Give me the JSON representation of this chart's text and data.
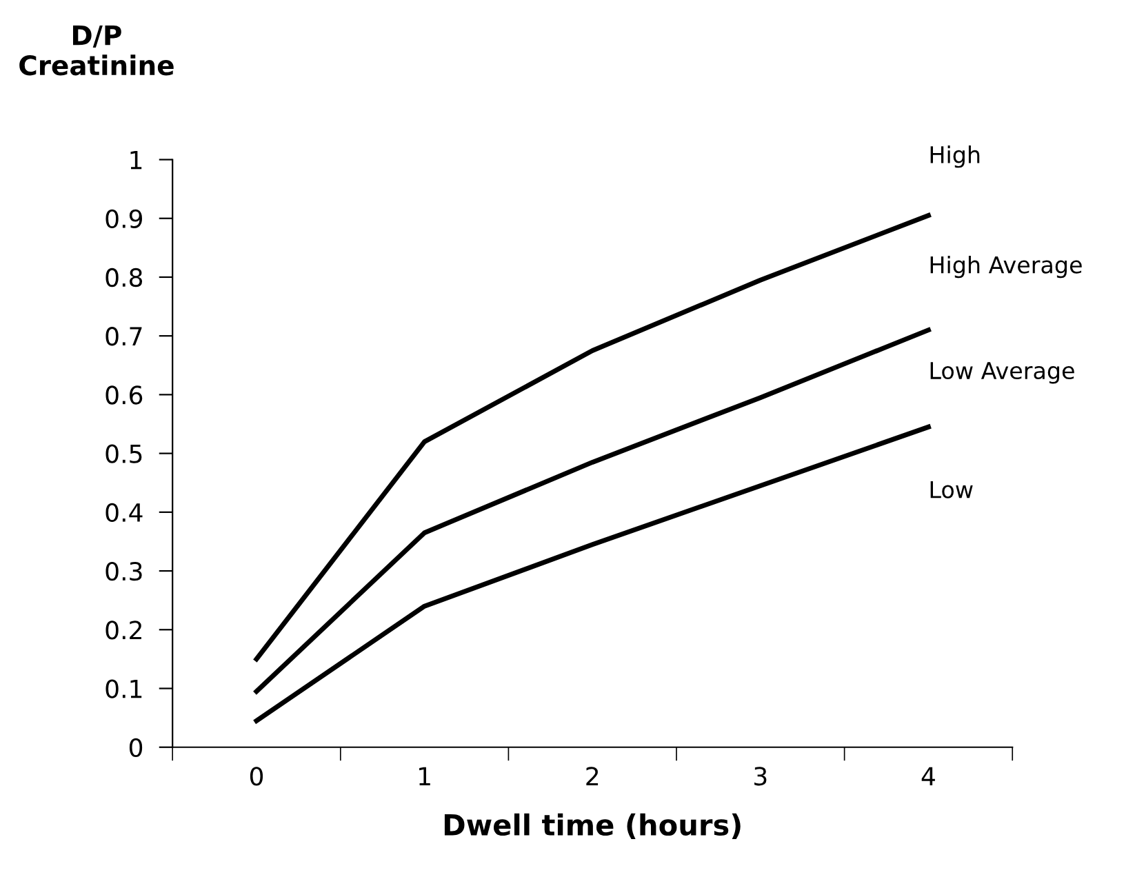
{
  "chart_data": {
    "type": "line",
    "ylabel": "D/P\nCreatinine",
    "xlabel": "Dwell time (hours)",
    "categories": [
      "0",
      "1",
      "2",
      "3",
      "4"
    ],
    "series": [
      {
        "color": "#000000",
        "values": [
          0.15,
          0.52,
          0.675,
          0.795,
          0.905
        ]
      },
      {
        "color": "#000000",
        "values": [
          0.095,
          0.365,
          0.485,
          0.595,
          0.71
        ]
      },
      {
        "color": "#000000",
        "values": [
          0.045,
          0.24,
          0.345,
          0.445,
          0.545
        ]
      }
    ],
    "annotations": [
      "High",
      "High Average",
      "Low Average",
      "Low"
    ],
    "ylim": [
      0,
      1
    ],
    "yticks": [
      0,
      0.1,
      0.2,
      0.3,
      0.4,
      0.5,
      0.6,
      0.7,
      0.8,
      0.9,
      1
    ],
    "grid": false,
    "legend": false,
    "marker": "none",
    "line_style": "solid"
  }
}
